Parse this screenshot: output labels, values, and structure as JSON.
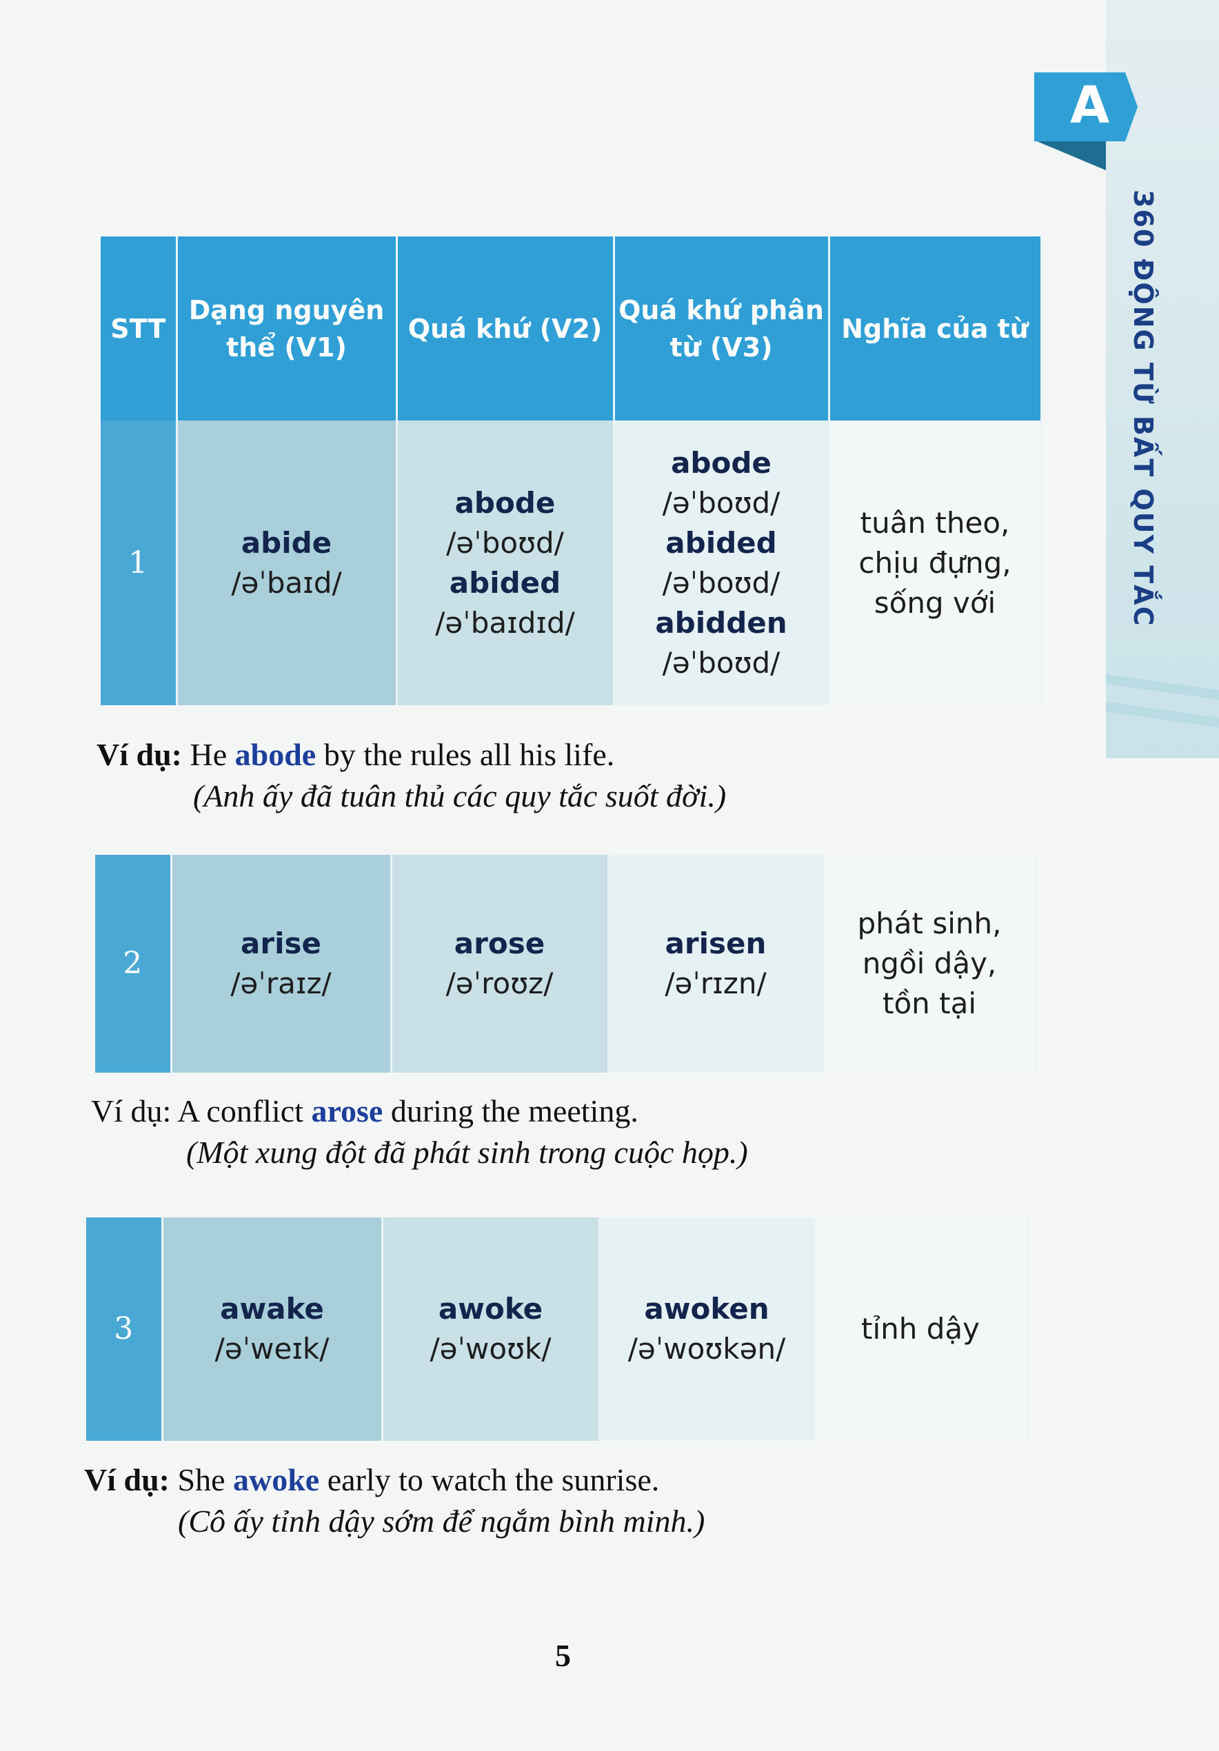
{
  "side_tab": {
    "letter": "A",
    "title": "360 ĐỘNG TỪ BẤT QUY TẮC"
  },
  "table_headers": [
    "STT",
    "Dạng nguyên thể (V1)",
    "Quá khứ (V2)",
    "Quá khứ phân từ (V3)",
    "Nghĩa của từ"
  ],
  "entries": [
    {
      "stt": "1",
      "v1": [
        {
          "word": "abide",
          "ipa": "/əˈbaɪd/"
        }
      ],
      "v2": [
        {
          "word": "abode",
          "ipa": "/əˈboʊd/"
        },
        {
          "word": "abided",
          "ipa": "/əˈbaɪdɪd/"
        }
      ],
      "v3": [
        {
          "word": "abode",
          "ipa": "/əˈboʊd/"
        },
        {
          "word": "abided",
          "ipa": "/əˈboʊd/"
        },
        {
          "word": "abidden",
          "ipa": "/əˈboʊd/"
        }
      ],
      "meaning": [
        "tuân theo,",
        "chịu đựng,",
        "sống với"
      ],
      "example": {
        "label": "Ví dụ:",
        "before": "He",
        "highlight": "abode",
        "after": "by the rules all his life.",
        "translation": "(Anh ấy đã tuân thủ các quy tắc suốt đời.)"
      }
    },
    {
      "stt": "2",
      "v1": [
        {
          "word": "arise",
          "ipa": "/əˈraɪz/"
        }
      ],
      "v2": [
        {
          "word": "arose",
          "ipa": "/əˈroʊz/"
        }
      ],
      "v3": [
        {
          "word": "arisen",
          "ipa": "/əˈrɪzn/"
        }
      ],
      "meaning": [
        "phát sinh,",
        "ngồi dậy,",
        "tồn tại"
      ],
      "example": {
        "label": "Ví dụ:",
        "before": "A conflict",
        "highlight": "arose",
        "after": "during the meeting.",
        "translation": "(Một xung đột đã phát sinh trong cuộc họp.)"
      }
    },
    {
      "stt": "3",
      "v1": [
        {
          "word": "awake",
          "ipa": "/əˈweɪk/"
        }
      ],
      "v2": [
        {
          "word": "awoke",
          "ipa": "/əˈwoʊk/"
        }
      ],
      "v3": [
        {
          "word": "awoken",
          "ipa": "/əˈwoʊkən/"
        }
      ],
      "meaning": [
        "tỉnh dậy"
      ],
      "example": {
        "label": "Ví dụ:",
        "before": "She",
        "highlight": "awoke",
        "after": "early to watch the sunrise.",
        "translation": "(Cô ấy tỉnh dậy sớm để ngắm bình minh.)"
      }
    }
  ],
  "page_number": "5",
  "colors": {
    "header_blue": "#2f9fd6",
    "word_navy": "#13244d",
    "highlight_blue": "#1c3f9a"
  }
}
